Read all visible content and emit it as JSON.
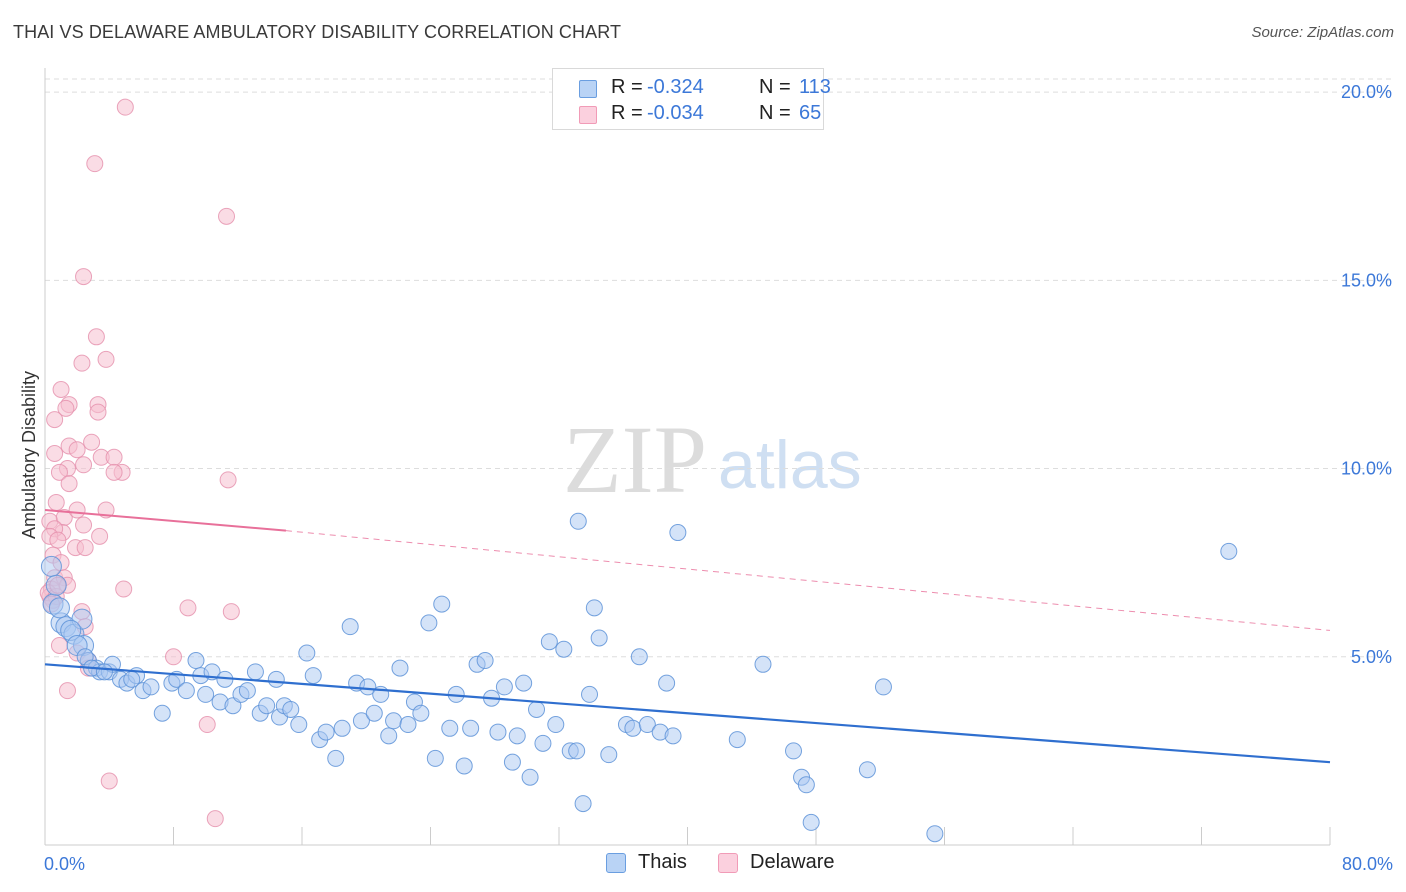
{
  "title": "THAI VS DELAWARE AMBULATORY DISABILITY CORRELATION CHART",
  "source": "Source: ZipAtlas.com",
  "watermark": {
    "zip": "ZIP",
    "atlas": "atlas"
  },
  "legend_top": [
    {
      "r_label": "R =",
      "r_value": "-0.324",
      "n_label": "N =",
      "n_value": "113"
    },
    {
      "r_label": "R =",
      "r_value": "-0.034",
      "n_label": "N =",
      "n_value": "65"
    }
  ],
  "colors": {
    "thais_fill": "#a9c8f2",
    "thais_stroke": "#5e93d8",
    "thais_line": "#2f6fcf",
    "delaware_fill": "#f6bfd0",
    "delaware_stroke": "#e58fab",
    "delaware_line": "#e8709a",
    "tick_label": "#3c78d8",
    "grid": "#dddddd"
  },
  "chart_data": {
    "type": "scatter",
    "title": "THAI VS DELAWARE AMBULATORY DISABILITY CORRELATION CHART",
    "xlabel": "",
    "ylabel": "Ambulatory Disability",
    "xlim": [
      0,
      80
    ],
    "ylim": [
      0,
      20.8
    ],
    "x_tick_labels": [
      "0.0%",
      "80.0%"
    ],
    "y_ticks": [
      5,
      10,
      15,
      20
    ],
    "y_tick_labels": [
      "5.0%",
      "10.0%",
      "15.0%",
      "20.0%"
    ],
    "grid": "horizontal dashed",
    "legend_position": "bottom-center",
    "series": [
      {
        "name": "Thais",
        "color": "#6a9ee0",
        "trend": {
          "x": [
            0,
            80
          ],
          "y": [
            4.8,
            2.2
          ],
          "style": "solid"
        },
        "points": [
          [
            0.4,
            7.4
          ],
          [
            0.5,
            6.4
          ],
          [
            0.7,
            6.9
          ],
          [
            1.0,
            5.9
          ],
          [
            1.3,
            5.8
          ],
          [
            1.8,
            5.6
          ],
          [
            2.3,
            6.0
          ],
          [
            2.4,
            5.3
          ],
          [
            2.7,
            4.9
          ],
          [
            3.2,
            4.7
          ],
          [
            3.4,
            4.6
          ],
          [
            4.0,
            4.6
          ],
          [
            4.2,
            4.8
          ],
          [
            4.7,
            4.4
          ],
          [
            5.1,
            4.3
          ],
          [
            5.7,
            4.5
          ],
          [
            6.1,
            4.1
          ],
          [
            6.6,
            4.2
          ],
          [
            7.3,
            3.5
          ],
          [
            7.9,
            4.3
          ],
          [
            8.2,
            4.4
          ],
          [
            8.8,
            4.1
          ],
          [
            9.4,
            4.9
          ],
          [
            9.7,
            4.5
          ],
          [
            10.0,
            4.0
          ],
          [
            10.4,
            4.6
          ],
          [
            10.9,
            3.8
          ],
          [
            11.2,
            4.4
          ],
          [
            11.7,
            3.7
          ],
          [
            12.2,
            4.0
          ],
          [
            12.6,
            4.1
          ],
          [
            13.1,
            4.6
          ],
          [
            13.4,
            3.5
          ],
          [
            13.8,
            3.7
          ],
          [
            14.4,
            4.4
          ],
          [
            14.6,
            3.4
          ],
          [
            14.9,
            3.7
          ],
          [
            15.3,
            3.6
          ],
          [
            15.8,
            3.2
          ],
          [
            16.3,
            5.1
          ],
          [
            16.7,
            4.5
          ],
          [
            17.1,
            2.8
          ],
          [
            17.5,
            3.0
          ],
          [
            18.1,
            2.3
          ],
          [
            18.5,
            3.1
          ],
          [
            19.0,
            5.8
          ],
          [
            19.4,
            4.3
          ],
          [
            19.7,
            3.3
          ],
          [
            20.1,
            4.2
          ],
          [
            20.5,
            3.5
          ],
          [
            20.9,
            4.0
          ],
          [
            21.4,
            2.9
          ],
          [
            21.7,
            3.3
          ],
          [
            22.1,
            4.7
          ],
          [
            22.6,
            3.2
          ],
          [
            23.0,
            3.8
          ],
          [
            23.4,
            3.5
          ],
          [
            23.9,
            5.9
          ],
          [
            24.3,
            2.3
          ],
          [
            24.7,
            6.4
          ],
          [
            25.2,
            3.1
          ],
          [
            25.6,
            4.0
          ],
          [
            26.1,
            2.1
          ],
          [
            26.5,
            3.1
          ],
          [
            26.9,
            4.8
          ],
          [
            27.4,
            4.9
          ],
          [
            27.8,
            3.9
          ],
          [
            28.2,
            3.0
          ],
          [
            28.6,
            4.2
          ],
          [
            29.1,
            2.2
          ],
          [
            29.4,
            2.9
          ],
          [
            29.8,
            4.3
          ],
          [
            30.2,
            1.8
          ],
          [
            30.6,
            3.6
          ],
          [
            31.0,
            2.7
          ],
          [
            31.4,
            5.4
          ],
          [
            31.8,
            3.2
          ],
          [
            32.3,
            5.2
          ],
          [
            32.7,
            2.5
          ],
          [
            33.1,
            2.5
          ],
          [
            33.5,
            1.1
          ],
          [
            33.9,
            4.0
          ],
          [
            34.2,
            6.3
          ],
          [
            34.5,
            5.5
          ],
          [
            35.1,
            2.4
          ],
          [
            36.2,
            3.2
          ],
          [
            36.6,
            3.1
          ],
          [
            37.0,
            5.0
          ],
          [
            37.5,
            3.2
          ],
          [
            38.3,
            3.0
          ],
          [
            38.7,
            4.3
          ],
          [
            39.1,
            2.9
          ],
          [
            33.2,
            8.6
          ],
          [
            39.4,
            8.3
          ],
          [
            43.1,
            2.8
          ],
          [
            44.7,
            4.8
          ],
          [
            46.6,
            2.5
          ],
          [
            47.1,
            1.8
          ],
          [
            47.4,
            1.6
          ],
          [
            47.7,
            0.6
          ],
          [
            51.2,
            2.0
          ],
          [
            52.2,
            4.2
          ],
          [
            55.4,
            0.3
          ],
          [
            73.7,
            7.8
          ],
          [
            0.9,
            6.3
          ],
          [
            1.6,
            5.7
          ],
          [
            2.0,
            5.3
          ],
          [
            2.5,
            5.0
          ],
          [
            2.9,
            4.7
          ],
          [
            3.7,
            4.6
          ],
          [
            5.4,
            4.4
          ]
        ]
      },
      {
        "name": "Delaware",
        "color": "#f19bb7",
        "trend": {
          "x": [
            0,
            15
          ],
          "y": [
            8.9,
            8.35
          ],
          "style": "solid",
          "extended": {
            "x": [
              15,
              80
            ],
            "y": [
              8.35,
              5.7
            ],
            "style": "dashed"
          }
        },
        "points": [
          [
            5.0,
            19.6
          ],
          [
            3.1,
            18.1
          ],
          [
            11.3,
            16.7
          ],
          [
            2.4,
            15.1
          ],
          [
            3.2,
            13.5
          ],
          [
            2.3,
            12.8
          ],
          [
            3.8,
            12.9
          ],
          [
            1.0,
            12.1
          ],
          [
            3.3,
            11.7
          ],
          [
            1.5,
            11.7
          ],
          [
            1.3,
            11.6
          ],
          [
            3.3,
            11.5
          ],
          [
            0.6,
            11.3
          ],
          [
            1.5,
            10.6
          ],
          [
            2.0,
            10.5
          ],
          [
            2.9,
            10.7
          ],
          [
            0.6,
            10.4
          ],
          [
            3.5,
            10.3
          ],
          [
            4.3,
            10.3
          ],
          [
            2.4,
            10.1
          ],
          [
            1.4,
            10.0
          ],
          [
            0.9,
            9.9
          ],
          [
            4.8,
            9.9
          ],
          [
            4.3,
            9.9
          ],
          [
            11.4,
            9.7
          ],
          [
            1.5,
            9.6
          ],
          [
            0.7,
            9.1
          ],
          [
            3.8,
            8.9
          ],
          [
            0.3,
            8.6
          ],
          [
            1.2,
            8.7
          ],
          [
            2.0,
            8.9
          ],
          [
            2.4,
            8.5
          ],
          [
            1.1,
            8.3
          ],
          [
            0.6,
            8.4
          ],
          [
            0.3,
            8.2
          ],
          [
            0.8,
            8.1
          ],
          [
            3.4,
            8.2
          ],
          [
            1.9,
            7.9
          ],
          [
            2.5,
            7.9
          ],
          [
            0.5,
            7.7
          ],
          [
            1.0,
            7.5
          ],
          [
            0.6,
            7.1
          ],
          [
            1.2,
            7.1
          ],
          [
            0.4,
            6.8
          ],
          [
            1.4,
            6.9
          ],
          [
            0.3,
            6.6
          ],
          [
            0.5,
            6.5
          ],
          [
            0.2,
            6.7
          ],
          [
            0.7,
            6.6
          ],
          [
            4.9,
            6.8
          ],
          [
            2.3,
            6.2
          ],
          [
            8.9,
            6.3
          ],
          [
            11.6,
            6.2
          ],
          [
            2.5,
            5.8
          ],
          [
            2.0,
            5.1
          ],
          [
            0.9,
            5.3
          ],
          [
            8.0,
            5.0
          ],
          [
            2.7,
            4.9
          ],
          [
            2.7,
            4.7
          ],
          [
            1.4,
            4.1
          ],
          [
            10.1,
            3.2
          ],
          [
            4.0,
            1.7
          ],
          [
            10.6,
            0.7
          ],
          [
            0.4,
            6.4
          ],
          [
            0.8,
            6.9
          ]
        ]
      }
    ]
  }
}
